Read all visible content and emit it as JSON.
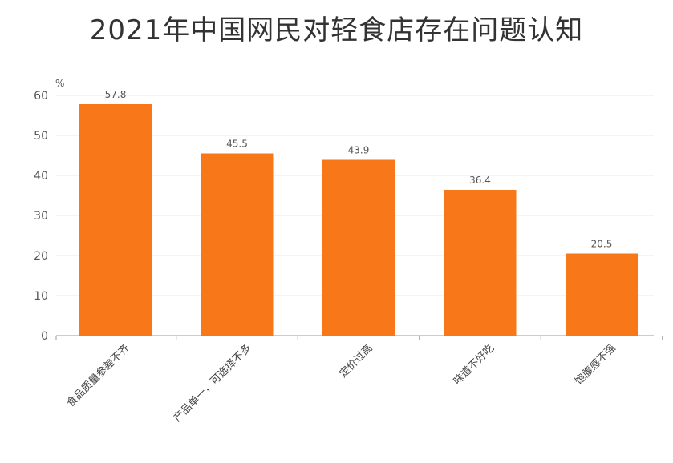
{
  "title": "2021年中国网民对轻食店存在问题认知",
  "unit": "%",
  "colors": {
    "bar": "#F87718",
    "grid": "#e8e8e8",
    "axis": "#999999"
  },
  "chart_data": {
    "type": "bar",
    "title": "2021年中国网民对轻食店存在问题认知",
    "categories": [
      "食品质量参差不齐",
      "产品单一，可选择不多",
      "定价过高",
      "味道不好吃",
      "饱腹感不强"
    ],
    "values": [
      57.8,
      45.5,
      43.9,
      36.4,
      20.5
    ],
    "value_labels": [
      "57.8",
      "45.5",
      "43.9",
      "36.4",
      "20.5"
    ],
    "ylabel": "%",
    "ylim": [
      0,
      60
    ],
    "yticks": [
      0,
      10,
      20,
      30,
      40,
      50,
      60
    ],
    "grid": true,
    "legend": "none"
  }
}
